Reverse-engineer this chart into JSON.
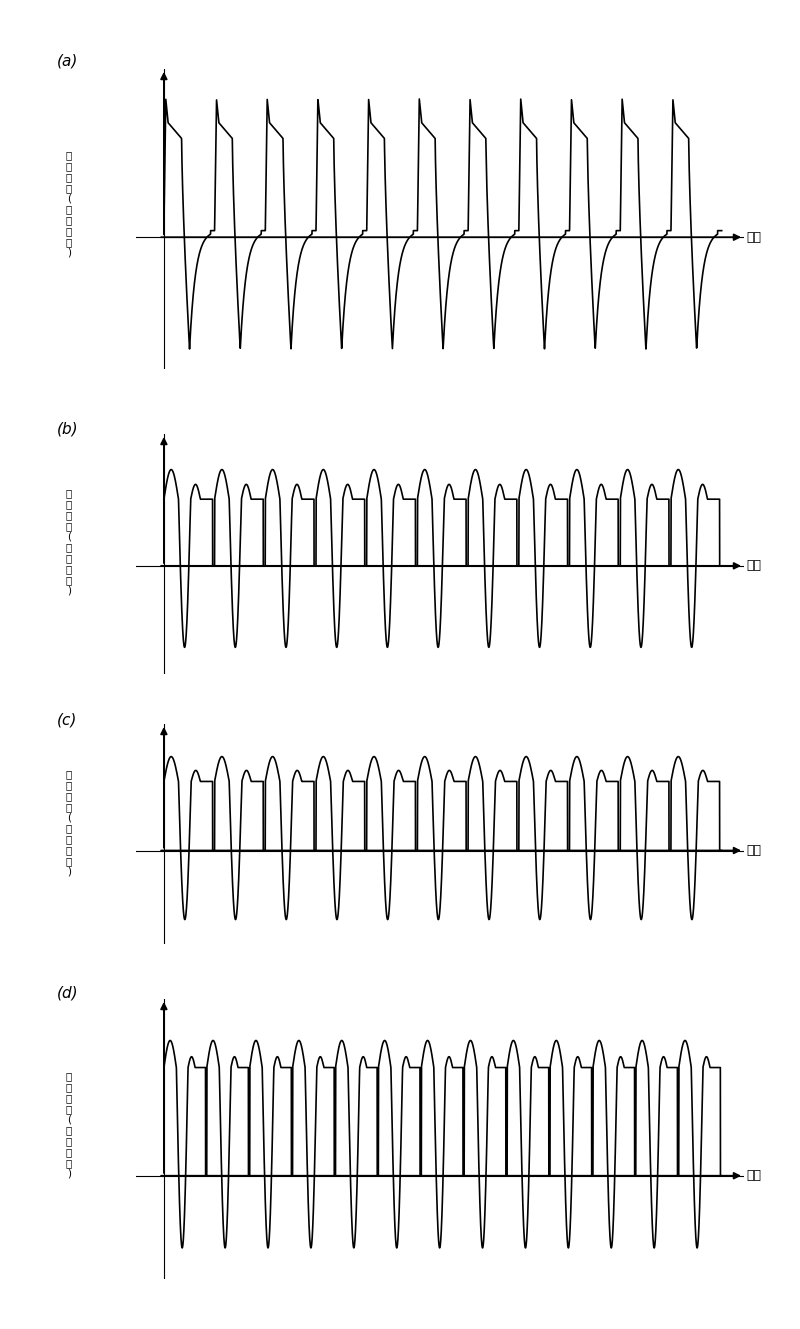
{
  "panel_labels": [
    "(a)",
    "(b)",
    "(c)",
    "(d)"
  ],
  "ylabel_lines": [
    "信号强度",
    "(任意单位)"
  ],
  "xlabel_chinese": "时间",
  "background_color": "#ffffff",
  "line_color": "#000000",
  "figsize": [
    8.0,
    13.29
  ],
  "dpi": 100,
  "panels": [
    {
      "key": "a",
      "num_cycles": 11,
      "amplitude": 1.0,
      "label": "(a)"
    },
    {
      "key": "b",
      "num_cycles": 11,
      "amplitude": 0.38,
      "label": "(b)"
    },
    {
      "key": "c",
      "num_cycles": 11,
      "amplitude": 0.25,
      "label": "(c)"
    },
    {
      "key": "d",
      "num_cycles": 13,
      "amplitude": 0.1,
      "label": "(d)"
    }
  ]
}
